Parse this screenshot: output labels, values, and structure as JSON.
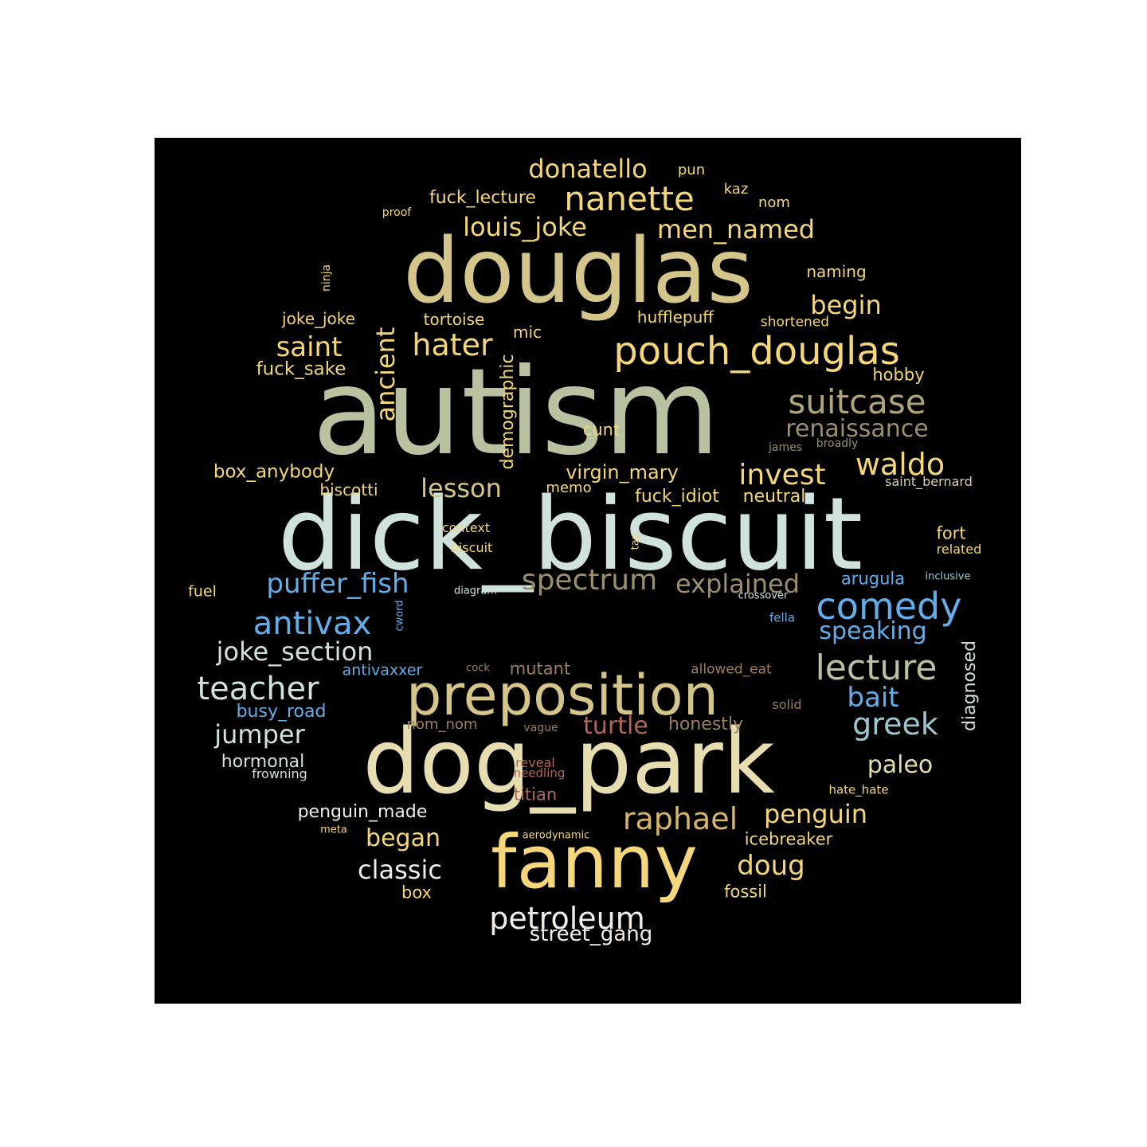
{
  "colors": {
    "page_background": "#fefefe",
    "panel_background": "#000000",
    "khaki": "#d4c58a",
    "sage": "#b8c2a0",
    "pale_blue": "#cfe2dc",
    "cream": "#e6ddb0",
    "gold": "#f4d77a",
    "sky_blue": "#63aee8",
    "brown": "#9b7f5c",
    "rust": "#b0685a",
    "white": "#f1ede6"
  },
  "words": [
    "autism",
    "dick_biscuit",
    "douglas",
    "dog_park",
    "fanny",
    "preposition",
    "pouch_douglas",
    "nanette",
    "suitcase",
    "comedy",
    "lecture",
    "hater",
    "antivax",
    "waldo",
    "invest",
    "teacher",
    "puffer_fish",
    "spectrum",
    "explained",
    "renaissance",
    "petroleum",
    "raphael",
    "greek",
    "louis_joke",
    "men_named",
    "donatello",
    "saint",
    "ancient",
    "joke_section",
    "lesson",
    "begin",
    "doug",
    "turtle",
    "penguin",
    "jumper",
    "classic",
    "paleo",
    "speaking",
    "bait",
    "began",
    "box_anybody",
    "virgin_mary",
    "fuck_lecture",
    "demographic",
    "diagnosed",
    "street_gang",
    "fuck_sake",
    "penguin_made",
    "hormonal",
    "busy_road",
    "fuck_idiot",
    "neutral",
    "joke_joke",
    "tortoise",
    "hufflepuff",
    "naming",
    "hobby",
    "arugula",
    "icebreaker",
    "honestly",
    "mutant",
    "titian",
    "fossil",
    "box",
    "cunt",
    "biscotti",
    "fort",
    "mic",
    "memo",
    "pun",
    "kaz",
    "nom",
    "fuel",
    "antivaxxer",
    "nom_nom",
    "shortened",
    "saint_bernard",
    "allowed_eat",
    "related",
    "context",
    "biscuit",
    "frowning",
    "reveal",
    "needling",
    "hate_hate",
    "solid",
    "fella",
    "proof",
    "ninja",
    "broadly",
    "james",
    "inclusive",
    "diagram",
    "crossover",
    "cword",
    "tay",
    "cock",
    "vague",
    "meta",
    "aerodynamic"
  ]
}
